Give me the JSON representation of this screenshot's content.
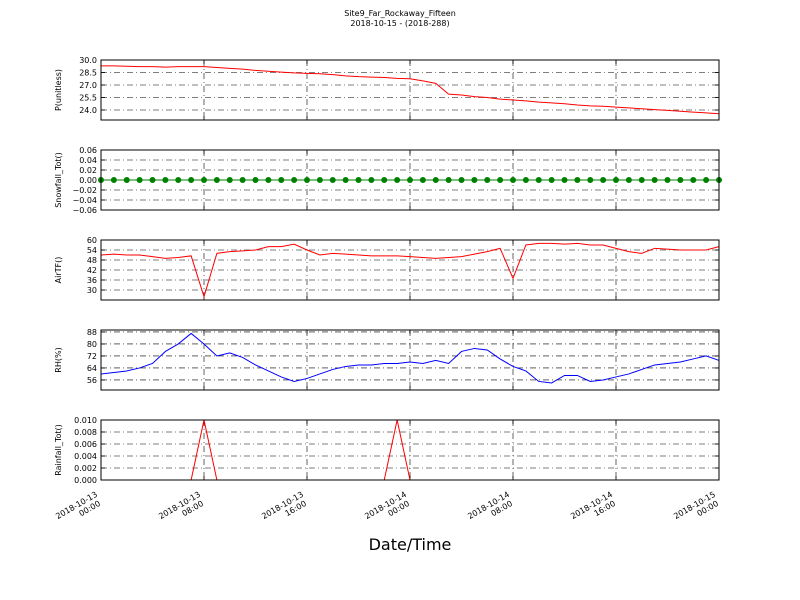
{
  "chart_data": [
    {
      "type": "line",
      "title": "Site9_Far_Rockaway_Fifteen",
      "subtitle": "2018-10-15 - (2018-288)",
      "ylabel": "P(unitless)",
      "color": "#ff0000",
      "grid": true,
      "x": [
        "2018-10-13 00:00",
        "2018-10-13 01:00",
        "2018-10-13 02:00",
        "2018-10-13 03:00",
        "2018-10-13 04:00",
        "2018-10-13 05:00",
        "2018-10-13 06:00",
        "2018-10-13 07:00",
        "2018-10-13 08:00",
        "2018-10-13 09:00",
        "2018-10-13 10:00",
        "2018-10-13 11:00",
        "2018-10-13 12:00",
        "2018-10-13 13:00",
        "2018-10-13 14:00",
        "2018-10-13 15:00",
        "2018-10-13 16:00",
        "2018-10-13 17:00",
        "2018-10-13 18:00",
        "2018-10-13 19:00",
        "2018-10-13 20:00",
        "2018-10-13 21:00",
        "2018-10-13 22:00",
        "2018-10-13 23:00",
        "2018-10-14 00:00",
        "2018-10-14 01:00",
        "2018-10-14 02:00",
        "2018-10-14 03:00",
        "2018-10-14 04:00",
        "2018-10-14 05:00",
        "2018-10-14 06:00",
        "2018-10-14 07:00",
        "2018-10-14 08:00",
        "2018-10-14 09:00",
        "2018-10-14 10:00",
        "2018-10-14 11:00",
        "2018-10-14 12:00",
        "2018-10-14 13:00",
        "2018-10-14 14:00",
        "2018-10-14 15:00",
        "2018-10-14 16:00",
        "2018-10-14 17:00",
        "2018-10-14 18:00",
        "2018-10-14 19:00",
        "2018-10-14 20:00",
        "2018-10-14 21:00",
        "2018-10-14 22:00",
        "2018-10-14 23:00",
        "2018-10-15 00:00"
      ],
      "values": [
        29.3,
        29.3,
        29.25,
        29.2,
        29.2,
        29.15,
        29.2,
        29.2,
        29.2,
        29.1,
        29.0,
        28.9,
        28.75,
        28.65,
        28.55,
        28.45,
        28.4,
        28.35,
        28.25,
        28.1,
        28.0,
        27.95,
        27.9,
        27.8,
        27.75,
        27.5,
        27.2,
        25.9,
        25.8,
        25.6,
        25.5,
        25.3,
        25.2,
        25.1,
        24.95,
        24.85,
        24.75,
        24.6,
        24.5,
        24.45,
        24.35,
        24.25,
        24.15,
        24.05,
        23.95,
        23.85,
        23.75,
        23.65,
        23.55
      ],
      "ylim": [
        22.8,
        30.0
      ],
      "yticks": [
        {
          "value": 24,
          "label": "24.0"
        },
        {
          "value": 25.5,
          "label": "25.5"
        },
        {
          "value": 27,
          "label": "27.0"
        },
        {
          "value": 28.5,
          "label": "28.5"
        },
        {
          "value": 30,
          "label": "30.0"
        }
      ]
    },
    {
      "type": "line",
      "ylabel": "Snowfall_Tot()",
      "color": "#008000",
      "marker": true,
      "grid": true,
      "x": [
        "2018-10-13 00:00",
        "2018-10-13 01:00",
        "2018-10-13 02:00",
        "2018-10-13 03:00",
        "2018-10-13 04:00",
        "2018-10-13 05:00",
        "2018-10-13 06:00",
        "2018-10-13 07:00",
        "2018-10-13 08:00",
        "2018-10-13 09:00",
        "2018-10-13 10:00",
        "2018-10-13 11:00",
        "2018-10-13 12:00",
        "2018-10-13 13:00",
        "2018-10-13 14:00",
        "2018-10-13 15:00",
        "2018-10-13 16:00",
        "2018-10-13 17:00",
        "2018-10-13 18:00",
        "2018-10-13 19:00",
        "2018-10-13 20:00",
        "2018-10-13 21:00",
        "2018-10-13 22:00",
        "2018-10-13 23:00",
        "2018-10-14 00:00",
        "2018-10-14 01:00",
        "2018-10-14 02:00",
        "2018-10-14 03:00",
        "2018-10-14 04:00",
        "2018-10-14 05:00",
        "2018-10-14 06:00",
        "2018-10-14 07:00",
        "2018-10-14 08:00",
        "2018-10-14 09:00",
        "2018-10-14 10:00",
        "2018-10-14 11:00",
        "2018-10-14 12:00",
        "2018-10-14 13:00",
        "2018-10-14 14:00",
        "2018-10-14 15:00",
        "2018-10-14 16:00",
        "2018-10-14 17:00",
        "2018-10-14 18:00",
        "2018-10-14 19:00",
        "2018-10-14 20:00",
        "2018-10-14 21:00",
        "2018-10-14 22:00",
        "2018-10-14 23:00",
        "2018-10-15 00:00"
      ],
      "values": [
        0,
        0,
        0,
        0,
        0,
        0,
        0,
        0,
        0,
        0,
        0,
        0,
        0,
        0,
        0,
        0,
        0,
        0,
        0,
        0,
        0,
        0,
        0,
        0,
        0,
        0,
        0,
        0,
        0,
        0,
        0,
        0,
        0,
        0,
        0,
        0,
        0,
        0,
        0,
        0,
        0,
        0,
        0,
        0,
        0,
        0,
        0,
        0,
        0
      ],
      "ylim": [
        -0.06,
        0.06
      ],
      "yticks": [
        {
          "value": -0.06,
          "label": "−0.06"
        },
        {
          "value": -0.04,
          "label": "−0.04"
        },
        {
          "value": -0.02,
          "label": "−0.02"
        },
        {
          "value": 0,
          "label": "0.00"
        },
        {
          "value": 0.02,
          "label": "0.02"
        },
        {
          "value": 0.04,
          "label": "0.04"
        },
        {
          "value": 0.06,
          "label": "0.06"
        }
      ]
    },
    {
      "type": "line",
      "ylabel": "AirTF()",
      "color": "#ff0000",
      "grid": true,
      "x": [
        "2018-10-13 00:00",
        "2018-10-13 01:00",
        "2018-10-13 02:00",
        "2018-10-13 03:00",
        "2018-10-13 04:00",
        "2018-10-13 05:00",
        "2018-10-13 06:00",
        "2018-10-13 07:00",
        "2018-10-13 08:00",
        "2018-10-13 09:00",
        "2018-10-13 10:00",
        "2018-10-13 11:00",
        "2018-10-13 12:00",
        "2018-10-13 13:00",
        "2018-10-13 14:00",
        "2018-10-13 15:00",
        "2018-10-13 16:00",
        "2018-10-13 17:00",
        "2018-10-13 18:00",
        "2018-10-13 19:00",
        "2018-10-13 20:00",
        "2018-10-13 21:00",
        "2018-10-13 22:00",
        "2018-10-13 23:00",
        "2018-10-14 00:00",
        "2018-10-14 01:00",
        "2018-10-14 02:00",
        "2018-10-14 03:00",
        "2018-10-14 04:00",
        "2018-10-14 05:00",
        "2018-10-14 06:00",
        "2018-10-14 07:00",
        "2018-10-14 08:00",
        "2018-10-14 09:00",
        "2018-10-14 10:00",
        "2018-10-14 11:00",
        "2018-10-14 12:00",
        "2018-10-14 13:00",
        "2018-10-14 14:00",
        "2018-10-14 15:00",
        "2018-10-14 16:00",
        "2018-10-14 17:00",
        "2018-10-14 18:00",
        "2018-10-14 19:00",
        "2018-10-14 20:00",
        "2018-10-14 21:00",
        "2018-10-14 22:00",
        "2018-10-14 23:00",
        "2018-10-15 00:00"
      ],
      "values": [
        51,
        51.5,
        51,
        51,
        50,
        49,
        49.5,
        50.5,
        26,
        52,
        53,
        53.5,
        54,
        56,
        56,
        57.5,
        54,
        51,
        52,
        51.5,
        51,
        50.5,
        50.5,
        50.5,
        50,
        49.5,
        49,
        49.5,
        50,
        51.5,
        53,
        55,
        37,
        57,
        58,
        58,
        57.5,
        58,
        57,
        57,
        55,
        53,
        52,
        55,
        54.5,
        54,
        54,
        54,
        56
      ],
      "ylim": [
        24,
        60
      ],
      "yticks": [
        30,
        36,
        42,
        48,
        54,
        60
      ]
    },
    {
      "type": "line",
      "ylabel": "RH(%)",
      "color": "#0000ff",
      "grid": true,
      "x": [
        "2018-10-13 00:00",
        "2018-10-13 01:00",
        "2018-10-13 02:00",
        "2018-10-13 03:00",
        "2018-10-13 04:00",
        "2018-10-13 05:00",
        "2018-10-13 06:00",
        "2018-10-13 07:00",
        "2018-10-13 08:00",
        "2018-10-13 09:00",
        "2018-10-13 10:00",
        "2018-10-13 11:00",
        "2018-10-13 12:00",
        "2018-10-13 13:00",
        "2018-10-13 14:00",
        "2018-10-13 15:00",
        "2018-10-13 16:00",
        "2018-10-13 17:00",
        "2018-10-13 18:00",
        "2018-10-13 19:00",
        "2018-10-13 20:00",
        "2018-10-13 21:00",
        "2018-10-13 22:00",
        "2018-10-13 23:00",
        "2018-10-14 00:00",
        "2018-10-14 01:00",
        "2018-10-14 02:00",
        "2018-10-14 03:00",
        "2018-10-14 04:00",
        "2018-10-14 05:00",
        "2018-10-14 06:00",
        "2018-10-14 07:00",
        "2018-10-14 08:00",
        "2018-10-14 09:00",
        "2018-10-14 10:00",
        "2018-10-14 11:00",
        "2018-10-14 12:00",
        "2018-10-14 13:00",
        "2018-10-14 14:00",
        "2018-10-14 15:00",
        "2018-10-14 16:00",
        "2018-10-14 17:00",
        "2018-10-14 18:00",
        "2018-10-14 19:00",
        "2018-10-14 20:00",
        "2018-10-14 21:00",
        "2018-10-14 22:00",
        "2018-10-14 23:00",
        "2018-10-15 00:00"
      ],
      "values": [
        60,
        61,
        62,
        64,
        67,
        75,
        80,
        87,
        80,
        72,
        74,
        71,
        66,
        62,
        58,
        55,
        57,
        60,
        63,
        65,
        66,
        66,
        67,
        67,
        68,
        67,
        69,
        67,
        75,
        77,
        76,
        70,
        65,
        62,
        55,
        54,
        59,
        59,
        55,
        56,
        58,
        60,
        63,
        66,
        67,
        68,
        70,
        72,
        69
      ],
      "ylim": [
        49.3,
        89.3
      ],
      "yticks": [
        56,
        64,
        72,
        80,
        88
      ]
    },
    {
      "type": "line",
      "ylabel": "Rainfall_Tot()",
      "xlabel": "Date/Time",
      "color": "#ff0000",
      "grid": true,
      "x": [
        "2018-10-13 00:00",
        "2018-10-13 01:00",
        "2018-10-13 02:00",
        "2018-10-13 03:00",
        "2018-10-13 04:00",
        "2018-10-13 05:00",
        "2018-10-13 06:00",
        "2018-10-13 07:00",
        "2018-10-13 08:00",
        "2018-10-13 09:00",
        "2018-10-13 10:00",
        "2018-10-13 11:00",
        "2018-10-13 12:00",
        "2018-10-13 13:00",
        "2018-10-13 14:00",
        "2018-10-13 15:00",
        "2018-10-13 16:00",
        "2018-10-13 17:00",
        "2018-10-13 18:00",
        "2018-10-13 19:00",
        "2018-10-13 20:00",
        "2018-10-13 21:00",
        "2018-10-13 22:00",
        "2018-10-13 23:00",
        "2018-10-14 00:00",
        "2018-10-14 01:00",
        "2018-10-14 02:00",
        "2018-10-14 03:00",
        "2018-10-14 04:00",
        "2018-10-14 05:00",
        "2018-10-14 06:00",
        "2018-10-14 07:00",
        "2018-10-14 08:00",
        "2018-10-14 09:00",
        "2018-10-14 10:00",
        "2018-10-14 11:00",
        "2018-10-14 12:00",
        "2018-10-14 13:00",
        "2018-10-14 14:00",
        "2018-10-14 15:00",
        "2018-10-14 16:00",
        "2018-10-14 17:00",
        "2018-10-14 18:00",
        "2018-10-14 19:00",
        "2018-10-14 20:00",
        "2018-10-14 21:00",
        "2018-10-14 22:00",
        "2018-10-14 23:00",
        "2018-10-15 00:00"
      ],
      "values": [
        0,
        0,
        0,
        0,
        0,
        0,
        0,
        0,
        0.01,
        0,
        0,
        0,
        0,
        0,
        0,
        0,
        0,
        0,
        0,
        0,
        0,
        0,
        0,
        0.01,
        0,
        0,
        0,
        0,
        0,
        0,
        0,
        0,
        0,
        0,
        0,
        0,
        0,
        0,
        0,
        0,
        0,
        0,
        0,
        0,
        0,
        0,
        0,
        0,
        0
      ],
      "ylim": [
        0,
        0.01
      ],
      "yticks": [
        {
          "value": 0,
          "label": "0.000"
        },
        {
          "value": 0.002,
          "label": "0.002"
        },
        {
          "value": 0.004,
          "label": "0.004"
        },
        {
          "value": 0.006,
          "label": "0.006"
        },
        {
          "value": 0.008,
          "label": "0.008"
        },
        {
          "value": 0.01,
          "label": "0.010"
        }
      ],
      "xlim": [
        "2018-10-13 00:00",
        "2018-10-15 00:00"
      ],
      "xticks": [
        {
          "value": "2018-10-13 00:00",
          "label": [
            "2018-10-13",
            "00:00"
          ]
        },
        {
          "value": "2018-10-13 08:00",
          "label": [
            "2018-10-13",
            "08:00"
          ]
        },
        {
          "value": "2018-10-13 16:00",
          "label": [
            "2018-10-13",
            "16:00"
          ]
        },
        {
          "value": "2018-10-14 00:00",
          "label": [
            "2018-10-14",
            "00:00"
          ]
        },
        {
          "value": "2018-10-14 08:00",
          "label": [
            "2018-10-14",
            "08:00"
          ]
        },
        {
          "value": "2018-10-14 16:00",
          "label": [
            "2018-10-14",
            "16:00"
          ]
        },
        {
          "value": "2018-10-15 00:00",
          "label": [
            "2018-10-15",
            "00:00"
          ]
        }
      ]
    }
  ]
}
